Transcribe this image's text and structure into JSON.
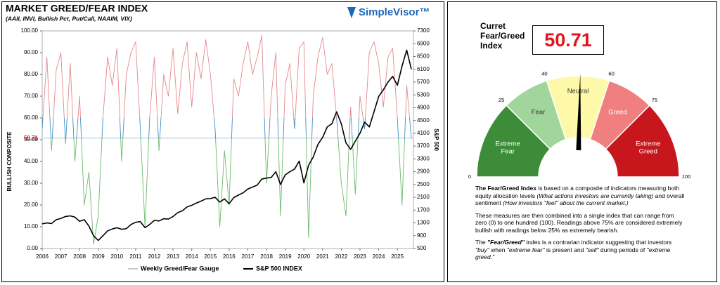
{
  "chart_data": {
    "type": "line",
    "title": "MARKET GREED/FEAR INDEX",
    "subtitle": "(AAII, INVI, Bullish Pct, Put/Call, NAAIM, VIX)",
    "brand": "SimpleVisor™",
    "ylabel": "BULLISH COMPOSITE",
    "y2label": "S&P 500",
    "x": [
      2006,
      2006.25,
      2006.5,
      2006.75,
      2007,
      2007.25,
      2007.5,
      2007.75,
      2008,
      2008.25,
      2008.5,
      2008.75,
      2009,
      2009.25,
      2009.5,
      2009.75,
      2010,
      2010.25,
      2010.5,
      2010.75,
      2011,
      2011.25,
      2011.5,
      2011.75,
      2012,
      2012.25,
      2012.5,
      2012.75,
      2013,
      2013.25,
      2013.5,
      2013.75,
      2014,
      2014.25,
      2014.5,
      2014.75,
      2015,
      2015.25,
      2015.5,
      2015.75,
      2016,
      2016.25,
      2016.5,
      2016.75,
      2017,
      2017.25,
      2017.5,
      2017.75,
      2018,
      2018.25,
      2018.5,
      2018.75,
      2019,
      2019.25,
      2019.5,
      2019.75,
      2020,
      2020.25,
      2020.5,
      2020.75,
      2021,
      2021.25,
      2021.5,
      2021.75,
      2022,
      2022.25,
      2022.5,
      2022.75,
      2023,
      2023.25,
      2023.5,
      2023.75,
      2024,
      2024.25,
      2024.5,
      2024.75,
      2025,
      2025.25,
      2025.5,
      2025.75
    ],
    "series": [
      {
        "name": "Weekly Greed/Fear Gauge",
        "color": "#b8b8b8",
        "band_colors": [
          "#e6878c",
          "#3c8fc6",
          "#6abb6a"
        ],
        "values": [
          55,
          88,
          45,
          82,
          90,
          48,
          85,
          40,
          70,
          20,
          35,
          2,
          15,
          60,
          88,
          75,
          92,
          40,
          80,
          90,
          95,
          55,
          10,
          60,
          88,
          45,
          80,
          70,
          92,
          62,
          85,
          95,
          65,
          90,
          78,
          96,
          80,
          55,
          10,
          45,
          20,
          78,
          70,
          85,
          95,
          80,
          88,
          98,
          30,
          70,
          90,
          15,
          75,
          85,
          55,
          92,
          95,
          5,
          70,
          88,
          97,
          80,
          85,
          60,
          30,
          15,
          65,
          25,
          70,
          55,
          90,
          95,
          85,
          65,
          88,
          92,
          60,
          20,
          75,
          50.71
        ]
      },
      {
        "name": "S&P 500 INDEX",
        "color": "#000000",
        "axis": "y2",
        "values": [
          1270,
          1300,
          1280,
          1400,
          1440,
          1500,
          1520,
          1480,
          1350,
          1400,
          1200,
          900,
          750,
          900,
          1050,
          1110,
          1150,
          1100,
          1120,
          1250,
          1320,
          1340,
          1150,
          1250,
          1380,
          1360,
          1430,
          1420,
          1500,
          1620,
          1680,
          1800,
          1850,
          1920,
          1980,
          2050,
          2060,
          2100,
          1950,
          2050,
          1900,
          2090,
          2170,
          2240,
          2360,
          2420,
          2480,
          2670,
          2700,
          2720,
          2900,
          2500,
          2800,
          2900,
          2980,
          3230,
          2550,
          3100,
          3360,
          3750,
          3970,
          4300,
          4400,
          4770,
          4400,
          3800,
          3600,
          3850,
          4100,
          4450,
          4300,
          4770,
          5250,
          5460,
          5700,
          5880,
          5600,
          6200,
          6700,
          6100
        ]
      }
    ],
    "reference_line": {
      "value": 50.71,
      "color": "#a9c6d6",
      "label_color": "#d9161d"
    },
    "xlim": [
      2006,
      2025.86
    ],
    "xticks": [
      2006,
      2007,
      2008,
      2009,
      2010,
      2011,
      2012,
      2013,
      2014,
      2015,
      2016,
      2017,
      2018,
      2019,
      2020,
      2021,
      2022,
      2023,
      2024,
      2025
    ],
    "ylim": [
      0,
      100
    ],
    "yticks": [
      {
        "value": 0,
        "label": "0.00"
      },
      {
        "value": 10,
        "label": "10.00"
      },
      {
        "value": 20,
        "label": "20.00"
      },
      {
        "value": 30,
        "label": "30.00"
      },
      {
        "value": 40,
        "label": "40.00"
      },
      {
        "value": 50,
        "label": "50.00"
      },
      {
        "value": 60,
        "label": "60.00"
      },
      {
        "value": 70,
        "label": "70.00"
      },
      {
        "value": 80,
        "label": "80.00"
      },
      {
        "value": 90,
        "label": "90.00"
      },
      {
        "value": 100,
        "label": "100.00"
      }
    ],
    "y2lim": [
      500,
      7300
    ],
    "y2ticks": [
      500,
      900,
      1300,
      1700,
      2100,
      2500,
      2900,
      3300,
      3700,
      4100,
      4500,
      4900,
      5300,
      5700,
      6100,
      6500,
      6900,
      7300
    ]
  },
  "gauge": {
    "label": "Curret Fear/Greed Index",
    "value": 50.71,
    "ticks": [
      0,
      25,
      40,
      60,
      75,
      100
    ],
    "zones": [
      {
        "label": [
          "Extreme",
          "Fear"
        ],
        "color": "#3c8c3a"
      },
      {
        "label": [
          "Fear"
        ],
        "color": "#a0d69c"
      },
      {
        "label": [
          "Neutral"
        ],
        "color": "#fdf9a8"
      },
      {
        "label": [
          "Greed"
        ],
        "color": "#f08080"
      },
      {
        "label": [
          "Extreme",
          "Greed"
        ],
        "color": "#c8161d"
      }
    ]
  },
  "text": {
    "p1": [
      "The Fear/Greed Index",
      "is based on a composite of indicators measuring both equity allocation levels",
      "(What actions investors are currently taking)",
      "and overall sentiment",
      "(How investors \"feel\" about the current market.)"
    ],
    "p2": [
      "These measures are then combined into a single index that can range from zero (0) to one hundred (100). Readings above 75% are considered extremely bullish with readings below 25% as extremely bearish."
    ],
    "p3": [
      "The",
      "\"Fear/Greed\"",
      "index is a contrarian indicator suggesting that investors",
      "\"buy\"",
      "when",
      "\"extreme fear\"",
      "is present and",
      "\"sell\"",
      "during periods of",
      "\"extreme greed.\""
    ]
  }
}
